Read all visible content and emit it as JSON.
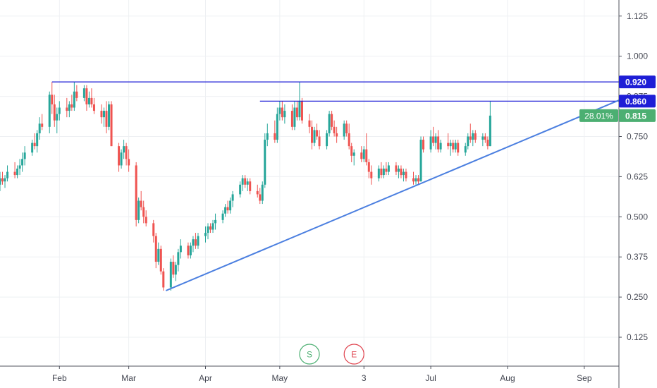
{
  "chart_data": {
    "type": "candlestick",
    "y_axis": {
      "position": "right",
      "ticks": [
        "0.125",
        "0.250",
        "0.375",
        "0.500",
        "0.625",
        "0.750",
        "0.875",
        "1.000",
        "1.125"
      ],
      "range": [
        0.035,
        1.175
      ]
    },
    "x_axis": {
      "ticks": [
        {
          "label": "Feb",
          "day": 31
        },
        {
          "label": "Mar",
          "day": 59
        },
        {
          "label": "Apr",
          "day": 90
        },
        {
          "label": "May",
          "day": 120
        },
        {
          "label": "3",
          "day": 154
        },
        {
          "label": "Jul",
          "day": 181
        },
        {
          "label": "Aug",
          "day": 212
        },
        {
          "label": "Sep",
          "day": 243
        }
      ],
      "range": [
        7,
        257
      ]
    },
    "grid": true,
    "price_labels": [
      {
        "text": "0.920",
        "value": 0.92,
        "color": "#1e1ed6"
      },
      {
        "text": "0.860",
        "value": 0.86,
        "color": "#1e1ed6"
      },
      {
        "text": "0.815",
        "value": 0.815,
        "color": "#4caf72",
        "badge": "28.01%"
      }
    ],
    "horizontal_lines": [
      {
        "value": 0.92,
        "from_day": 28,
        "color": "#1e1ed6"
      },
      {
        "value": 0.86,
        "from_day": 112,
        "color": "#1e1ed6"
      }
    ],
    "trend_line": {
      "from": {
        "day": 74,
        "value": 0.27
      },
      "to": {
        "day": 257,
        "value": 0.863
      },
      "color": "#4b7fe0"
    },
    "markers": [
      {
        "text": "S",
        "day": 132,
        "color": "#4caf72"
      },
      {
        "text": "E",
        "day": 150,
        "color": "#e0434e"
      }
    ],
    "colors": {
      "up": "#26a69a",
      "down": "#ef5350"
    },
    "candles": [
      {
        "t": 7,
        "o": 0.6,
        "h": 0.64,
        "l": 0.58,
        "c": 0.62
      },
      {
        "t": 8,
        "o": 0.62,
        "h": 0.64,
        "l": 0.6,
        "c": 0.61
      },
      {
        "t": 9,
        "o": 0.61,
        "h": 0.63,
        "l": 0.59,
        "c": 0.62
      },
      {
        "t": 10,
        "o": 0.62,
        "h": 0.66,
        "l": 0.61,
        "c": 0.64
      },
      {
        "t": 13,
        "o": 0.64,
        "h": 0.67,
        "l": 0.62,
        "c": 0.63
      },
      {
        "t": 14,
        "o": 0.63,
        "h": 0.66,
        "l": 0.62,
        "c": 0.65
      },
      {
        "t": 15,
        "o": 0.65,
        "h": 0.68,
        "l": 0.63,
        "c": 0.66
      },
      {
        "t": 16,
        "o": 0.66,
        "h": 0.7,
        "l": 0.64,
        "c": 0.68
      },
      {
        "t": 17,
        "o": 0.68,
        "h": 0.72,
        "l": 0.66,
        "c": 0.7
      },
      {
        "t": 20,
        "o": 0.7,
        "h": 0.74,
        "l": 0.69,
        "c": 0.73
      },
      {
        "t": 21,
        "o": 0.73,
        "h": 0.76,
        "l": 0.71,
        "c": 0.72
      },
      {
        "t": 22,
        "o": 0.72,
        "h": 0.77,
        "l": 0.7,
        "c": 0.76
      },
      {
        "t": 23,
        "o": 0.76,
        "h": 0.81,
        "l": 0.74,
        "c": 0.79
      },
      {
        "t": 24,
        "o": 0.79,
        "h": 0.82,
        "l": 0.77,
        "c": 0.78
      },
      {
        "t": 27,
        "o": 0.78,
        "h": 0.89,
        "l": 0.76,
        "c": 0.88
      },
      {
        "t": 28,
        "o": 0.88,
        "h": 0.92,
        "l": 0.82,
        "c": 0.85
      },
      {
        "t": 29,
        "o": 0.85,
        "h": 0.88,
        "l": 0.78,
        "c": 0.8
      },
      {
        "t": 30,
        "o": 0.8,
        "h": 0.84,
        "l": 0.76,
        "c": 0.82
      },
      {
        "t": 31,
        "o": 0.82,
        "h": 0.86,
        "l": 0.8,
        "c": 0.84
      },
      {
        "t": 34,
        "o": 0.84,
        "h": 0.87,
        "l": 0.81,
        "c": 0.83
      },
      {
        "t": 35,
        "o": 0.83,
        "h": 0.86,
        "l": 0.81,
        "c": 0.85
      },
      {
        "t": 36,
        "o": 0.85,
        "h": 0.88,
        "l": 0.83,
        "c": 0.84
      },
      {
        "t": 37,
        "o": 0.84,
        "h": 0.92,
        "l": 0.83,
        "c": 0.89
      },
      {
        "t": 38,
        "o": 0.89,
        "h": 0.91,
        "l": 0.86,
        "c": 0.87
      },
      {
        "t": 41,
        "o": 0.87,
        "h": 0.91,
        "l": 0.86,
        "c": 0.9
      },
      {
        "t": 42,
        "o": 0.9,
        "h": 0.91,
        "l": 0.83,
        "c": 0.85
      },
      {
        "t": 43,
        "o": 0.85,
        "h": 0.89,
        "l": 0.84,
        "c": 0.87
      },
      {
        "t": 44,
        "o": 0.87,
        "h": 0.9,
        "l": 0.84,
        "c": 0.85
      },
      {
        "t": 45,
        "o": 0.85,
        "h": 0.87,
        "l": 0.82,
        "c": 0.83
      },
      {
        "t": 48,
        "o": 0.83,
        "h": 0.85,
        "l": 0.79,
        "c": 0.81
      },
      {
        "t": 49,
        "o": 0.81,
        "h": 0.84,
        "l": 0.78,
        "c": 0.83
      },
      {
        "t": 50,
        "o": 0.83,
        "h": 0.86,
        "l": 0.76,
        "c": 0.78
      },
      {
        "t": 51,
        "o": 0.78,
        "h": 0.86,
        "l": 0.77,
        "c": 0.85
      },
      {
        "t": 52,
        "o": 0.85,
        "h": 0.86,
        "l": 0.72,
        "c": 0.72
      },
      {
        "t": 55,
        "o": 0.72,
        "h": 0.73,
        "l": 0.64,
        "c": 0.66
      },
      {
        "t": 56,
        "o": 0.66,
        "h": 0.71,
        "l": 0.65,
        "c": 0.7
      },
      {
        "t": 57,
        "o": 0.7,
        "h": 0.74,
        "l": 0.68,
        "c": 0.72
      },
      {
        "t": 58,
        "o": 0.72,
        "h": 0.73,
        "l": 0.66,
        "c": 0.68
      },
      {
        "t": 59,
        "o": 0.68,
        "h": 0.71,
        "l": 0.64,
        "c": 0.66
      },
      {
        "t": 62,
        "o": 0.66,
        "h": 0.67,
        "l": 0.47,
        "c": 0.49
      },
      {
        "t": 63,
        "o": 0.49,
        "h": 0.56,
        "l": 0.48,
        "c": 0.55
      },
      {
        "t": 64,
        "o": 0.55,
        "h": 0.58,
        "l": 0.52,
        "c": 0.53
      },
      {
        "t": 65,
        "o": 0.53,
        "h": 0.55,
        "l": 0.48,
        "c": 0.5
      },
      {
        "t": 66,
        "o": 0.5,
        "h": 0.52,
        "l": 0.47,
        "c": 0.48
      },
      {
        "t": 69,
        "o": 0.48,
        "h": 0.49,
        "l": 0.42,
        "c": 0.44
      },
      {
        "t": 70,
        "o": 0.44,
        "h": 0.45,
        "l": 0.34,
        "c": 0.36
      },
      {
        "t": 71,
        "o": 0.36,
        "h": 0.42,
        "l": 0.35,
        "c": 0.4
      },
      {
        "t": 72,
        "o": 0.4,
        "h": 0.41,
        "l": 0.32,
        "c": 0.33
      },
      {
        "t": 73,
        "o": 0.33,
        "h": 0.34,
        "l": 0.27,
        "c": 0.28
      },
      {
        "t": 76,
        "o": 0.28,
        "h": 0.37,
        "l": 0.27,
        "c": 0.36
      },
      {
        "t": 77,
        "o": 0.36,
        "h": 0.38,
        "l": 0.31,
        "c": 0.32
      },
      {
        "t": 78,
        "o": 0.32,
        "h": 0.36,
        "l": 0.3,
        "c": 0.35
      },
      {
        "t": 79,
        "o": 0.35,
        "h": 0.4,
        "l": 0.33,
        "c": 0.39
      },
      {
        "t": 80,
        "o": 0.39,
        "h": 0.43,
        "l": 0.37,
        "c": 0.41
      },
      {
        "t": 83,
        "o": 0.41,
        "h": 0.42,
        "l": 0.37,
        "c": 0.38
      },
      {
        "t": 84,
        "o": 0.38,
        "h": 0.42,
        "l": 0.37,
        "c": 0.41
      },
      {
        "t": 85,
        "o": 0.41,
        "h": 0.44,
        "l": 0.39,
        "c": 0.43
      },
      {
        "t": 86,
        "o": 0.43,
        "h": 0.45,
        "l": 0.4,
        "c": 0.41
      },
      {
        "t": 87,
        "o": 0.41,
        "h": 0.45,
        "l": 0.4,
        "c": 0.44
      },
      {
        "t": 90,
        "o": 0.44,
        "h": 0.47,
        "l": 0.42,
        "c": 0.45
      },
      {
        "t": 91,
        "o": 0.45,
        "h": 0.48,
        "l": 0.43,
        "c": 0.47
      },
      {
        "t": 92,
        "o": 0.47,
        "h": 0.48,
        "l": 0.45,
        "c": 0.46
      },
      {
        "t": 93,
        "o": 0.46,
        "h": 0.49,
        "l": 0.45,
        "c": 0.48
      },
      {
        "t": 94,
        "o": 0.48,
        "h": 0.51,
        "l": 0.46,
        "c": 0.49
      },
      {
        "t": 97,
        "o": 0.49,
        "h": 0.52,
        "l": 0.48,
        "c": 0.51
      },
      {
        "t": 98,
        "o": 0.51,
        "h": 0.54,
        "l": 0.5,
        "c": 0.53
      },
      {
        "t": 99,
        "o": 0.53,
        "h": 0.55,
        "l": 0.51,
        "c": 0.52
      },
      {
        "t": 100,
        "o": 0.52,
        "h": 0.56,
        "l": 0.51,
        "c": 0.55
      },
      {
        "t": 101,
        "o": 0.55,
        "h": 0.58,
        "l": 0.53,
        "c": 0.57
      },
      {
        "t": 104,
        "o": 0.57,
        "h": 0.61,
        "l": 0.56,
        "c": 0.6
      },
      {
        "t": 105,
        "o": 0.6,
        "h": 0.63,
        "l": 0.58,
        "c": 0.62
      },
      {
        "t": 106,
        "o": 0.62,
        "h": 0.63,
        "l": 0.59,
        "c": 0.6
      },
      {
        "t": 107,
        "o": 0.6,
        "h": 0.62,
        "l": 0.58,
        "c": 0.61
      },
      {
        "t": 108,
        "o": 0.61,
        "h": 0.62,
        "l": 0.57,
        "c": 0.58
      },
      {
        "t": 111,
        "o": 0.58,
        "h": 0.6,
        "l": 0.56,
        "c": 0.57
      },
      {
        "t": 112,
        "o": 0.57,
        "h": 0.59,
        "l": 0.54,
        "c": 0.55
      },
      {
        "t": 113,
        "o": 0.55,
        "h": 0.61,
        "l": 0.54,
        "c": 0.6
      },
      {
        "t": 114,
        "o": 0.6,
        "h": 0.76,
        "l": 0.59,
        "c": 0.74
      },
      {
        "t": 115,
        "o": 0.74,
        "h": 0.79,
        "l": 0.72,
        "c": 0.76
      },
      {
        "t": 118,
        "o": 0.76,
        "h": 0.8,
        "l": 0.73,
        "c": 0.74
      },
      {
        "t": 119,
        "o": 0.74,
        "h": 0.84,
        "l": 0.73,
        "c": 0.82
      },
      {
        "t": 120,
        "o": 0.82,
        "h": 0.86,
        "l": 0.8,
        "c": 0.84
      },
      {
        "t": 121,
        "o": 0.84,
        "h": 0.86,
        "l": 0.8,
        "c": 0.81
      },
      {
        "t": 122,
        "o": 0.81,
        "h": 0.85,
        "l": 0.79,
        "c": 0.83
      },
      {
        "t": 125,
        "o": 0.83,
        "h": 0.85,
        "l": 0.77,
        "c": 0.78
      },
      {
        "t": 126,
        "o": 0.78,
        "h": 0.86,
        "l": 0.77,
        "c": 0.84
      },
      {
        "t": 127,
        "o": 0.84,
        "h": 0.86,
        "l": 0.8,
        "c": 0.81
      },
      {
        "t": 128,
        "o": 0.81,
        "h": 0.92,
        "l": 0.8,
        "c": 0.86
      },
      {
        "t": 129,
        "o": 0.86,
        "h": 0.87,
        "l": 0.79,
        "c": 0.8
      },
      {
        "t": 132,
        "o": 0.8,
        "h": 0.82,
        "l": 0.76,
        "c": 0.78
      },
      {
        "t": 133,
        "o": 0.78,
        "h": 0.8,
        "l": 0.71,
        "c": 0.73
      },
      {
        "t": 134,
        "o": 0.73,
        "h": 0.78,
        "l": 0.72,
        "c": 0.77
      },
      {
        "t": 135,
        "o": 0.77,
        "h": 0.79,
        "l": 0.74,
        "c": 0.75
      },
      {
        "t": 136,
        "o": 0.75,
        "h": 0.77,
        "l": 0.71,
        "c": 0.72
      },
      {
        "t": 139,
        "o": 0.72,
        "h": 0.77,
        "l": 0.71,
        "c": 0.76
      },
      {
        "t": 140,
        "o": 0.76,
        "h": 0.83,
        "l": 0.75,
        "c": 0.82
      },
      {
        "t": 141,
        "o": 0.82,
        "h": 0.83,
        "l": 0.77,
        "c": 0.78
      },
      {
        "t": 142,
        "o": 0.78,
        "h": 0.8,
        "l": 0.75,
        "c": 0.76
      },
      {
        "t": 143,
        "o": 0.76,
        "h": 0.78,
        "l": 0.73,
        "c": 0.75
      },
      {
        "t": 146,
        "o": 0.75,
        "h": 0.8,
        "l": 0.74,
        "c": 0.79
      },
      {
        "t": 147,
        "o": 0.79,
        "h": 0.8,
        "l": 0.75,
        "c": 0.76
      },
      {
        "t": 148,
        "o": 0.76,
        "h": 0.79,
        "l": 0.71,
        "c": 0.72
      },
      {
        "t": 149,
        "o": 0.72,
        "h": 0.73,
        "l": 0.67,
        "c": 0.69
      },
      {
        "t": 150,
        "o": 0.69,
        "h": 0.71,
        "l": 0.66,
        "c": 0.7
      },
      {
        "t": 153,
        "o": 0.7,
        "h": 0.72,
        "l": 0.67,
        "c": 0.68
      },
      {
        "t": 154,
        "o": 0.68,
        "h": 0.72,
        "l": 0.67,
        "c": 0.71
      },
      {
        "t": 155,
        "o": 0.71,
        "h": 0.76,
        "l": 0.66,
        "c": 0.67
      },
      {
        "t": 156,
        "o": 0.67,
        "h": 0.68,
        "l": 0.62,
        "c": 0.64
      },
      {
        "t": 157,
        "o": 0.64,
        "h": 0.66,
        "l": 0.6,
        "c": 0.62
      },
      {
        "t": 160,
        "o": 0.62,
        "h": 0.66,
        "l": 0.61,
        "c": 0.65
      },
      {
        "t": 161,
        "o": 0.65,
        "h": 0.67,
        "l": 0.62,
        "c": 0.63
      },
      {
        "t": 162,
        "o": 0.63,
        "h": 0.66,
        "l": 0.62,
        "c": 0.65
      },
      {
        "t": 163,
        "o": 0.65,
        "h": 0.67,
        "l": 0.63,
        "c": 0.64
      },
      {
        "t": 164,
        "o": 0.64,
        "h": 0.67,
        "l": 0.63,
        "c": 0.66
      },
      {
        "t": 167,
        "o": 0.66,
        "h": 0.67,
        "l": 0.63,
        "c": 0.64
      },
      {
        "t": 168,
        "o": 0.64,
        "h": 0.66,
        "l": 0.62,
        "c": 0.65
      },
      {
        "t": 169,
        "o": 0.65,
        "h": 0.66,
        "l": 0.62,
        "c": 0.63
      },
      {
        "t": 170,
        "o": 0.63,
        "h": 0.65,
        "l": 0.61,
        "c": 0.64
      },
      {
        "t": 171,
        "o": 0.64,
        "h": 0.65,
        "l": 0.61,
        "c": 0.62
      },
      {
        "t": 174,
        "o": 0.62,
        "h": 0.64,
        "l": 0.6,
        "c": 0.61
      },
      {
        "t": 175,
        "o": 0.61,
        "h": 0.63,
        "l": 0.6,
        "c": 0.62
      },
      {
        "t": 176,
        "o": 0.62,
        "h": 0.63,
        "l": 0.6,
        "c": 0.61
      },
      {
        "t": 177,
        "o": 0.61,
        "h": 0.75,
        "l": 0.61,
        "c": 0.74
      },
      {
        "t": 178,
        "o": 0.74,
        "h": 0.75,
        "l": 0.7,
        "c": 0.71
      },
      {
        "t": 181,
        "o": 0.71,
        "h": 0.77,
        "l": 0.7,
        "c": 0.75
      },
      {
        "t": 182,
        "o": 0.75,
        "h": 0.78,
        "l": 0.72,
        "c": 0.73
      },
      {
        "t": 183,
        "o": 0.73,
        "h": 0.76,
        "l": 0.71,
        "c": 0.75
      },
      {
        "t": 184,
        "o": 0.75,
        "h": 0.77,
        "l": 0.7,
        "c": 0.71
      },
      {
        "t": 185,
        "o": 0.71,
        "h": 0.74,
        "l": 0.7,
        "c": 0.73
      },
      {
        "t": 188,
        "o": 0.73,
        "h": 0.76,
        "l": 0.71,
        "c": 0.72
      },
      {
        "t": 189,
        "o": 0.72,
        "h": 0.74,
        "l": 0.69,
        "c": 0.73
      },
      {
        "t": 190,
        "o": 0.73,
        "h": 0.74,
        "l": 0.7,
        "c": 0.71
      },
      {
        "t": 191,
        "o": 0.71,
        "h": 0.74,
        "l": 0.7,
        "c": 0.73
      },
      {
        "t": 192,
        "o": 0.73,
        "h": 0.74,
        "l": 0.69,
        "c": 0.7
      },
      {
        "t": 195,
        "o": 0.7,
        "h": 0.73,
        "l": 0.69,
        "c": 0.72
      },
      {
        "t": 196,
        "o": 0.72,
        "h": 0.76,
        "l": 0.71,
        "c": 0.75
      },
      {
        "t": 197,
        "o": 0.75,
        "h": 0.79,
        "l": 0.73,
        "c": 0.74
      },
      {
        "t": 198,
        "o": 0.74,
        "h": 0.77,
        "l": 0.72,
        "c": 0.76
      },
      {
        "t": 199,
        "o": 0.76,
        "h": 0.77,
        "l": 0.73,
        "c": 0.74
      },
      {
        "t": 202,
        "o": 0.74,
        "h": 0.76,
        "l": 0.72,
        "c": 0.75
      },
      {
        "t": 203,
        "o": 0.75,
        "h": 0.76,
        "l": 0.73,
        "c": 0.74
      },
      {
        "t": 204,
        "o": 0.74,
        "h": 0.75,
        "l": 0.71,
        "c": 0.72
      },
      {
        "t": 205,
        "o": 0.72,
        "h": 0.86,
        "l": 0.72,
        "c": 0.815
      }
    ]
  }
}
